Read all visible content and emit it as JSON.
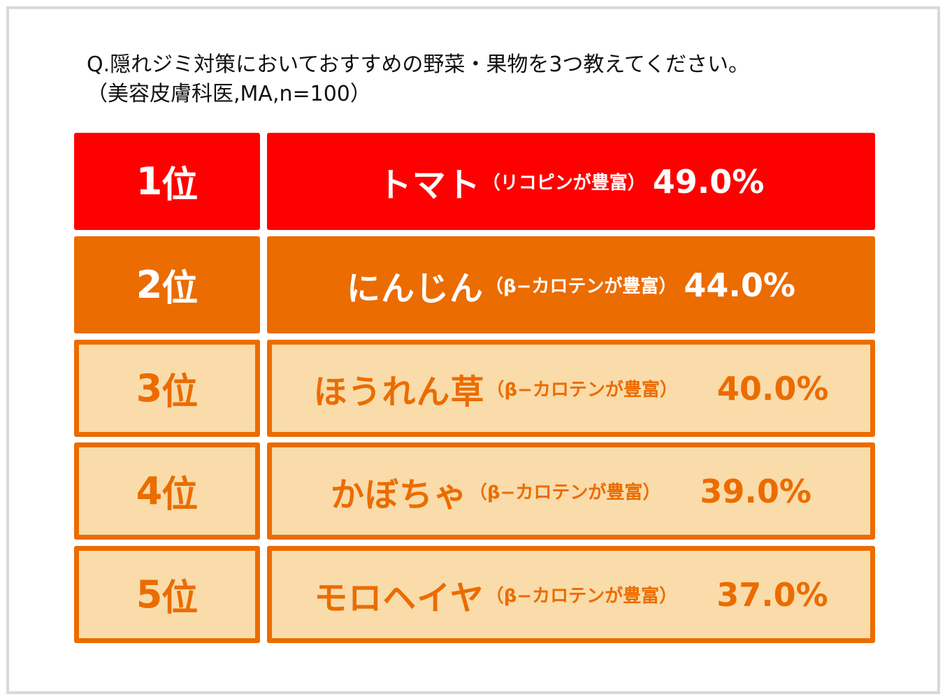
{
  "question": {
    "line1": "Q.隠れジミ対策においておすすめの野菜・果物を3つ教えてください。",
    "line2": "（美容皮膚科医,MA,n=100）"
  },
  "colors": {
    "first": "#ff0000",
    "second": "#eb6c00",
    "outlined_fill": "#f9dcaa",
    "outlined_border": "#eb6c00"
  },
  "chart_data": {
    "type": "table",
    "unit": "%",
    "rows": [
      {
        "rank": "1",
        "rank_suffix": "位",
        "name": "トマト",
        "note": "（リコピンが豊富）",
        "value": 49.0,
        "value_label": "49.0%"
      },
      {
        "rank": "2",
        "rank_suffix": "位",
        "name": "にんじん",
        "note": "（β−カロテンが豊富）",
        "value": 44.0,
        "value_label": "44.0%"
      },
      {
        "rank": "3",
        "rank_suffix": "位",
        "name": "ほうれん草",
        "note": "（β−カロテンが豊富）",
        "value": 40.0,
        "value_label": "40.0%"
      },
      {
        "rank": "4",
        "rank_suffix": "位",
        "name": "かぼちゃ",
        "note": "（β−カロテンが豊富）",
        "value": 39.0,
        "value_label": "39.0%"
      },
      {
        "rank": "5",
        "rank_suffix": "位",
        "name": "モロヘイヤ",
        "note": "（β−カロテンが豊富）",
        "value": 37.0,
        "value_label": "37.0%"
      }
    ]
  }
}
